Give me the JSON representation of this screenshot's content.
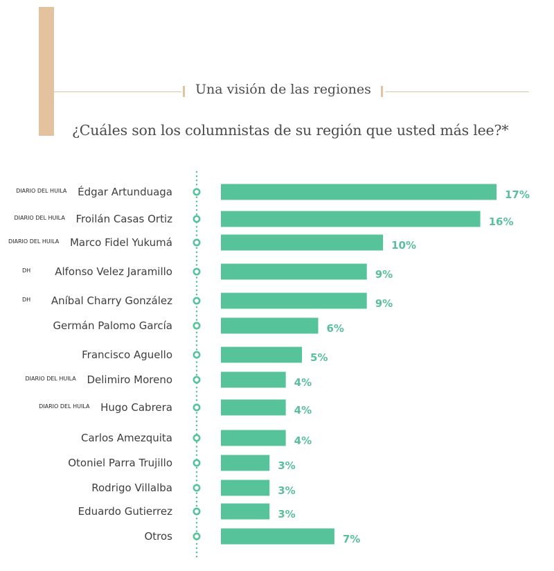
{
  "header": {
    "title": "Una visión de las regiones",
    "subtitle": "¿Cuáles son los columnistas de su región que usted más lee?*"
  },
  "colors": {
    "bar": "#57c39b",
    "accent": "#e2c29f",
    "axis": "#57c39b",
    "value_text": "#5bbf9a"
  },
  "chart_data": {
    "type": "bar",
    "orientation": "horizontal",
    "categories": [
      "Édgar Artunduaga",
      "Froilán Casas Ortiz",
      "Marco Fidel Yukumá",
      "Alfonso Velez Jaramillo",
      "Aníbal Charry González",
      "Germán Palomo García",
      "Francisco Aguello",
      "Delimiro Moreno",
      "Hugo Cabrera",
      "Carlos Amezquita",
      "Otoniel Parra Trujillo",
      "Rodrigo Villalba",
      "Eduardo Gutierrez",
      "Otros"
    ],
    "values": [
      17,
      16,
      10,
      9,
      9,
      6,
      5,
      4,
      4,
      4,
      3,
      3,
      3,
      7
    ],
    "value_labels": [
      "17%",
      "16%",
      "10%",
      "9%",
      "9%",
      "6%",
      "5%",
      "4%",
      "4%",
      "4%",
      "3%",
      "3%",
      "3%",
      "7%"
    ],
    "sources": [
      "DIARIO DEL HUILA",
      "DIARIO DEL HUILA",
      "DIARIO DEL HUILA",
      "DH",
      "DH",
      "",
      "",
      "DIARIO DEL HUILA",
      "DIARIO DEL HUILA",
      "",
      "",
      "",
      "",
      ""
    ],
    "unit": "%",
    "xlim": [
      0,
      17
    ],
    "grid": false,
    "legend": "none"
  }
}
